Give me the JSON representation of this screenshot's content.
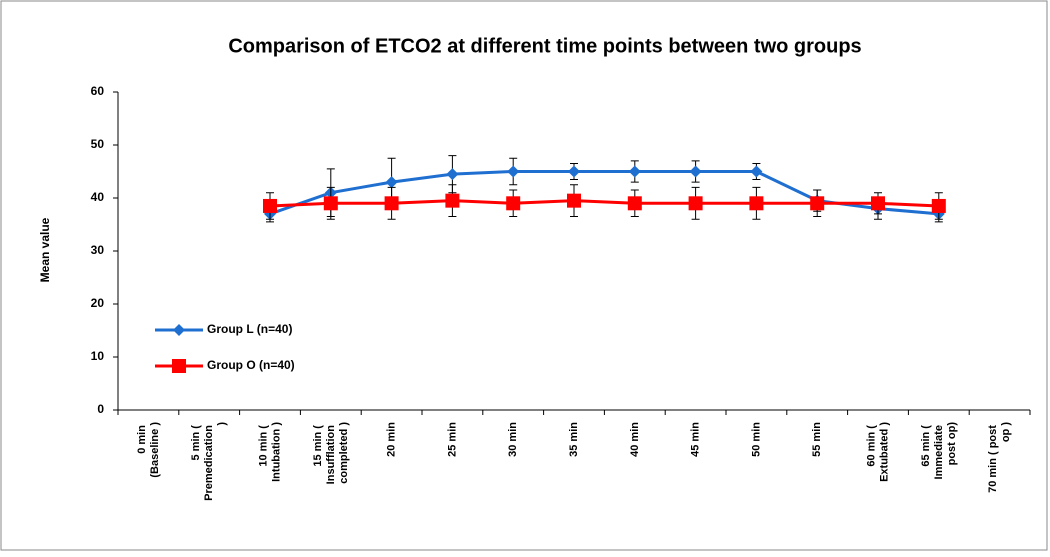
{
  "chart_data": {
    "type": "line",
    "title": "Comparison of ETCO2 at different time points between two groups",
    "y_label": "Mean value",
    "categories": [
      "0 min (Baseline )",
      "5 min ( Premedication )",
      "10 min ( Intubation )",
      "15 min ( Insufflation completed )",
      "20 min",
      "25 min",
      "30 min",
      "35 min",
      "40 min",
      "45 min",
      "50 min",
      "55 min",
      "60 min ( Extubated )",
      "65 min ( Immediate post op)",
      "70 min ( post op )"
    ],
    "series": [
      {
        "name": "Group L (n=40)",
        "color": "#1f6fd1",
        "marker": "diamond",
        "values": [
          null,
          null,
          37,
          41,
          43,
          44.5,
          45,
          45,
          45,
          45,
          45,
          39.5,
          38,
          37,
          null
        ],
        "errors": [
          null,
          null,
          1.5,
          4.5,
          4.5,
          3.5,
          2.5,
          1.5,
          2,
          2,
          1.5,
          2,
          2,
          1.5,
          null
        ]
      },
      {
        "name": "Group O (n=40)",
        "color": "#ff0000",
        "marker": "square",
        "values": [
          null,
          null,
          38.5,
          39,
          39,
          39.5,
          39,
          39.5,
          39,
          39,
          39,
          39,
          39,
          38.5,
          null
        ],
        "errors": [
          null,
          null,
          2.5,
          3,
          3,
          3,
          2.5,
          3,
          2.5,
          3,
          3,
          2.5,
          2,
          2.5,
          null
        ]
      }
    ],
    "ylim": [
      0,
      60
    ],
    "yticks": [
      0,
      10,
      20,
      30,
      40,
      50,
      60
    ],
    "grid": false,
    "legend": "lower left"
  }
}
